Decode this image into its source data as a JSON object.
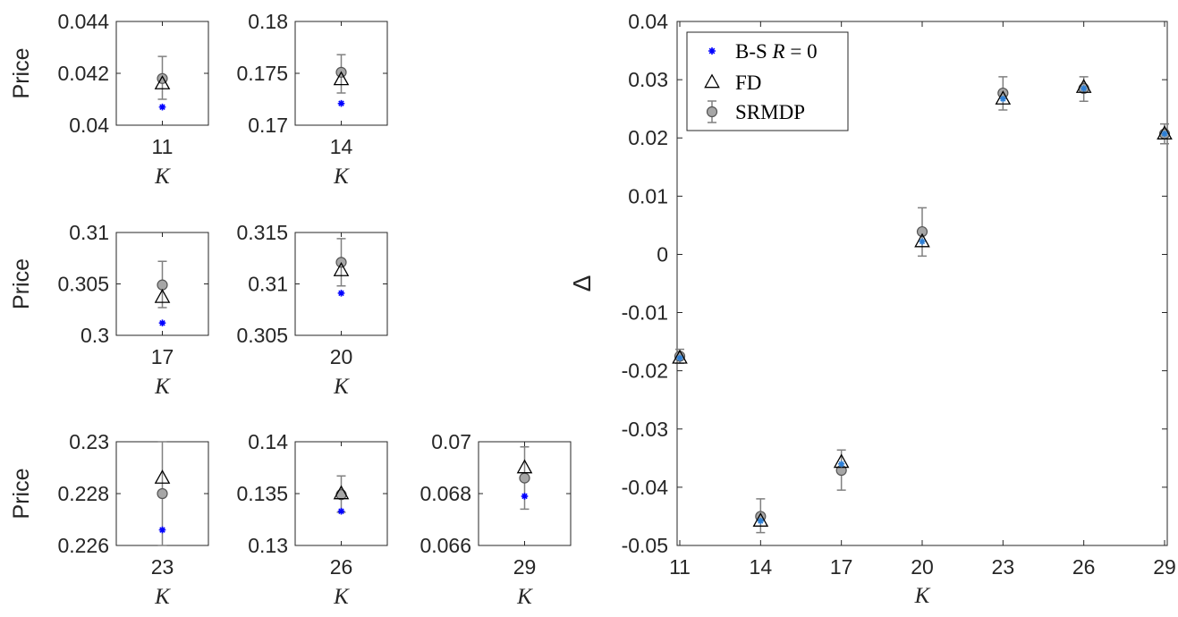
{
  "chart_data": [
    {
      "type": "scatter",
      "ylabel": "Price",
      "xlabel": "K",
      "x_tick_labels": [
        "11"
      ],
      "y_tick_labels": [
        "0.04",
        "0.042",
        "0.044"
      ],
      "ylim": [
        0.04,
        0.044
      ],
      "xlim": [
        10.5,
        11.5
      ],
      "series": [
        {
          "name": "B-S R = 0",
          "x": [
            11
          ],
          "y": [
            0.0407
          ]
        },
        {
          "name": "FD",
          "x": [
            11
          ],
          "y": [
            0.0416
          ]
        },
        {
          "name": "SRMDP",
          "x": [
            11
          ],
          "y": [
            0.0418
          ],
          "err_low": [
            0.041
          ],
          "err_high": [
            0.04265
          ]
        }
      ]
    },
    {
      "type": "scatter",
      "ylabel": "",
      "xlabel": "K",
      "x_tick_labels": [
        "14"
      ],
      "y_tick_labels": [
        "0.17",
        "0.175",
        "0.18"
      ],
      "ylim": [
        0.17,
        0.18
      ],
      "xlim": [
        13.5,
        14.5
      ],
      "series": [
        {
          "name": "B-S R = 0",
          "x": [
            14
          ],
          "y": [
            0.1721
          ]
        },
        {
          "name": "FD",
          "x": [
            14
          ],
          "y": [
            0.1744
          ]
        },
        {
          "name": "SRMDP",
          "x": [
            14
          ],
          "y": [
            0.1751
          ],
          "err_low": [
            0.1731
          ],
          "err_high": [
            0.1768
          ]
        }
      ]
    },
    {
      "type": "scatter",
      "ylabel": "Price",
      "xlabel": "K",
      "x_tick_labels": [
        "17"
      ],
      "y_tick_labels": [
        "0.3",
        "0.305",
        "0.31"
      ],
      "ylim": [
        0.3,
        0.31
      ],
      "xlim": [
        16.5,
        17.5
      ],
      "series": [
        {
          "name": "B-S R = 0",
          "x": [
            17
          ],
          "y": [
            0.3012
          ]
        },
        {
          "name": "FD",
          "x": [
            17
          ],
          "y": [
            0.3037
          ]
        },
        {
          "name": "SRMDP",
          "x": [
            17
          ],
          "y": [
            0.3049
          ],
          "err_low": [
            0.3027
          ],
          "err_high": [
            0.3072
          ]
        }
      ]
    },
    {
      "type": "scatter",
      "ylabel": "",
      "xlabel": "K",
      "x_tick_labels": [
        "20"
      ],
      "y_tick_labels": [
        "0.305",
        "0.31",
        "0.315"
      ],
      "ylim": [
        0.305,
        0.315
      ],
      "xlim": [
        19.5,
        20.5
      ],
      "series": [
        {
          "name": "B-S R = 0",
          "x": [
            20
          ],
          "y": [
            0.3091
          ]
        },
        {
          "name": "FD",
          "x": [
            20
          ],
          "y": [
            0.3113
          ]
        },
        {
          "name": "SRMDP",
          "x": [
            20
          ],
          "y": [
            0.3121
          ],
          "err_low": [
            0.3098
          ],
          "err_high": [
            0.3144
          ]
        }
      ]
    },
    {
      "type": "scatter",
      "ylabel": "Price",
      "xlabel": "K",
      "x_tick_labels": [
        "23"
      ],
      "y_tick_labels": [
        "0.226",
        "0.228",
        "0.23"
      ],
      "ylim": [
        0.226,
        0.23
      ],
      "xlim": [
        22.5,
        23.5
      ],
      "series": [
        {
          "name": "B-S R = 0",
          "x": [
            23
          ],
          "y": [
            0.2266
          ]
        },
        {
          "name": "FD",
          "x": [
            23
          ],
          "y": [
            0.2286
          ]
        },
        {
          "name": "SRMDP",
          "x": [
            23
          ],
          "y": [
            0.228
          ],
          "err_low": [
            0.226
          ],
          "err_high": [
            0.23
          ]
        }
      ]
    },
    {
      "type": "scatter",
      "ylabel": "",
      "xlabel": "K",
      "x_tick_labels": [
        "26"
      ],
      "y_tick_labels": [
        "0.13",
        "0.135",
        "0.14"
      ],
      "ylim": [
        0.13,
        0.14
      ],
      "xlim": [
        25.5,
        26.5
      ],
      "series": [
        {
          "name": "B-S R = 0",
          "x": [
            26
          ],
          "y": [
            0.1333
          ]
        },
        {
          "name": "FD",
          "x": [
            26
          ],
          "y": [
            0.135
          ]
        },
        {
          "name": "SRMDP",
          "x": [
            26
          ],
          "y": [
            0.1349
          ],
          "err_low": [
            0.1332
          ],
          "err_high": [
            0.1367
          ]
        }
      ]
    },
    {
      "type": "scatter",
      "ylabel": "",
      "xlabel": "K",
      "x_tick_labels": [
        "29"
      ],
      "y_tick_labels": [
        "0.066",
        "0.068",
        "0.07"
      ],
      "ylim": [
        0.066,
        0.07
      ],
      "xlim": [
        28.5,
        29.5
      ],
      "series": [
        {
          "name": "B-S R = 0",
          "x": [
            29
          ],
          "y": [
            0.0679
          ]
        },
        {
          "name": "FD",
          "x": [
            29
          ],
          "y": [
            0.069
          ]
        },
        {
          "name": "SRMDP",
          "x": [
            29
          ],
          "y": [
            0.0686
          ],
          "err_low": [
            0.0674
          ],
          "err_high": [
            0.0698
          ]
        }
      ]
    },
    {
      "type": "scatter",
      "ylabel": "Δ",
      "xlabel": "K",
      "ylim": [
        -0.05,
        0.04
      ],
      "xlim": [
        10.9,
        29.1
      ],
      "x_tick_labels": [
        "11",
        "14",
        "17",
        "20",
        "23",
        "26",
        "29"
      ],
      "y_tick_labels": [
        "-0.05",
        "-0.04",
        "-0.03",
        "-0.02",
        "-0.01",
        "0",
        "0.01",
        "0.02",
        "0.03",
        "0.04"
      ],
      "legend_position": "top-left",
      "series": [
        {
          "name": "B-S R = 0",
          "x": [
            11,
            14,
            17,
            20,
            23,
            26,
            29
          ],
          "y": [
            -0.0178,
            -0.0458,
            -0.036,
            0.0022,
            0.0267,
            0.0285,
            0.0207
          ]
        },
        {
          "name": "FD",
          "x": [
            11,
            14,
            17,
            20,
            23,
            26,
            29
          ],
          "y": [
            -0.0178,
            -0.0458,
            -0.0357,
            0.0022,
            0.0267,
            0.0287,
            0.0207
          ]
        },
        {
          "name": "SRMDP",
          "x": [
            11,
            14,
            17,
            20,
            23,
            26,
            29
          ],
          "y": [
            -0.0175,
            -0.045,
            -0.0371,
            0.0039,
            0.0277,
            0.0285,
            0.0207
          ],
          "err_low": [
            -0.0187,
            -0.0478,
            -0.0405,
            -0.0003,
            0.0248,
            0.0263,
            0.019
          ],
          "err_high": [
            -0.0163,
            -0.042,
            -0.0336,
            0.008,
            0.0305,
            0.0305,
            0.0224
          ]
        }
      ],
      "legend": [
        {
          "prefix": "B-S ",
          "italic": "R",
          "suffix": " = 0",
          "marker": "asterisk"
        },
        {
          "prefix": "FD",
          "italic": "",
          "suffix": "",
          "marker": "triangle"
        },
        {
          "prefix": "SRMDP",
          "italic": "",
          "suffix": "",
          "marker": "circle-errorbar"
        }
      ]
    }
  ],
  "colors": {
    "bs": "#0000ff",
    "bs_delta": "#2d7fd6",
    "fd": "#000000",
    "srmdp_fill": "#a6a6a6",
    "srmdp_edge": "#555555",
    "errbar": "#808080",
    "axis": "#262626"
  }
}
